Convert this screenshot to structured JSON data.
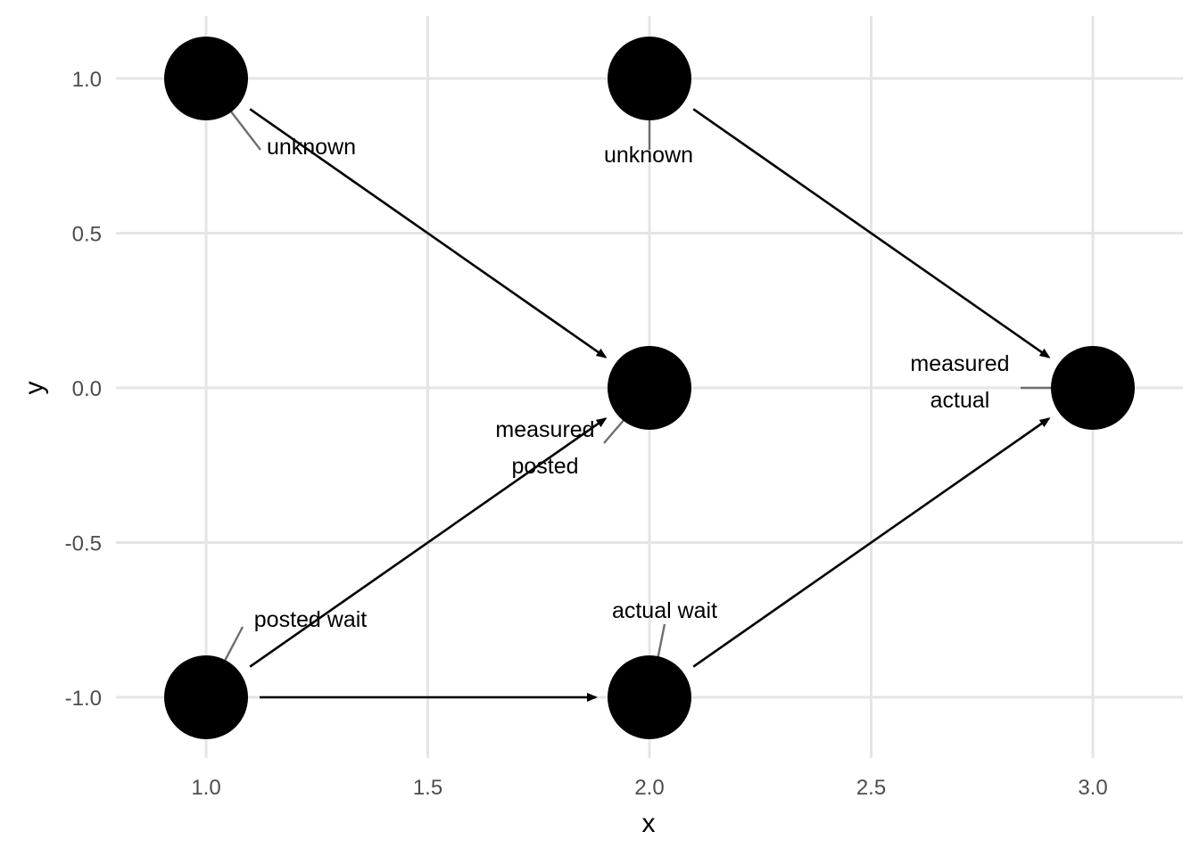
{
  "chart_data": {
    "type": "dag",
    "xlabel": "x",
    "ylabel": "y",
    "xlim": [
      0.8,
      3.2
    ],
    "ylim": [
      -1.2,
      1.2
    ],
    "x_ticks": [
      "1.0",
      "1.5",
      "2.0",
      "2.5",
      "3.0"
    ],
    "y_ticks": [
      "-1.0",
      "-0.5",
      "0.0",
      "0.5",
      "1.0"
    ],
    "x_tick_values": [
      1.0,
      1.5,
      2.0,
      2.5,
      3.0
    ],
    "y_tick_values": [
      -1.0,
      -0.5,
      0.0,
      0.5,
      1.0
    ],
    "grid": true,
    "nodes": [
      {
        "id": "posted_wait",
        "x": 1,
        "y": -1,
        "label": [
          "posted wait"
        ]
      },
      {
        "id": "actual_wait",
        "x": 2,
        "y": -1,
        "label": [
          "actual wait"
        ]
      },
      {
        "id": "unknown_1",
        "x": 1,
        "y": 1,
        "label": [
          "unknown"
        ]
      },
      {
        "id": "unknown_2",
        "x": 2,
        "y": 1,
        "label": [
          "unknown"
        ]
      },
      {
        "id": "measured_posted",
        "x": 2,
        "y": 0,
        "label": [
          "measured",
          "posted"
        ]
      },
      {
        "id": "measured_actual",
        "x": 3,
        "y": 0,
        "label": [
          "measured",
          "actual"
        ]
      }
    ],
    "edges": [
      {
        "from": "unknown_1",
        "to": "measured_posted"
      },
      {
        "from": "unknown_2",
        "to": "measured_actual"
      },
      {
        "from": "posted_wait",
        "to": "measured_posted"
      },
      {
        "from": "posted_wait",
        "to": "actual_wait"
      },
      {
        "from": "actual_wait",
        "to": "measured_actual"
      }
    ]
  }
}
